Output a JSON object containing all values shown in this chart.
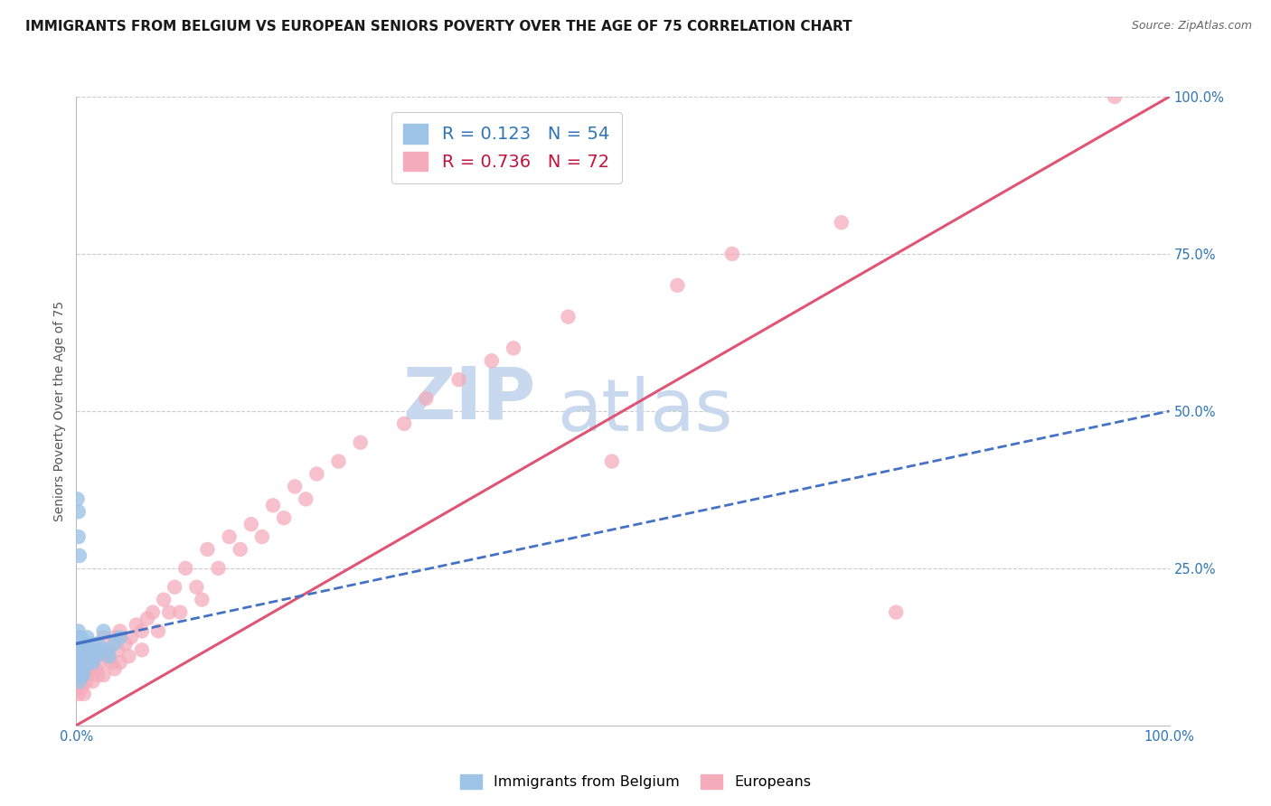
{
  "title": "IMMIGRANTS FROM BELGIUM VS EUROPEAN SENIORS POVERTY OVER THE AGE OF 75 CORRELATION CHART",
  "source": "Source: ZipAtlas.com",
  "ylabel": "Seniors Poverty Over the Age of 75",
  "legend_label1": "Immigrants from Belgium",
  "legend_label2": "Europeans",
  "R1": 0.123,
  "N1": 54,
  "R2": 0.736,
  "N2": 72,
  "color_blue": "#9DC3E6",
  "color_pink": "#F4ACBB",
  "color_blue_line": "#4472C4",
  "color_pink_line": "#E05575",
  "color_blue_dark": "#2E75B6",
  "color_pink_dark": "#C0143C",
  "xlim": [
    0.0,
    1.0
  ],
  "ylim": [
    0.0,
    1.0
  ],
  "ytick_positions": [
    0.25,
    0.5,
    0.75,
    1.0
  ],
  "ytick_labels": [
    "25.0%",
    "50.0%",
    "75.0%",
    "100.0%"
  ],
  "watermark_zip": "ZIP",
  "watermark_atlas": "atlas",
  "blue_scatter_x": [
    0.001,
    0.001,
    0.002,
    0.002,
    0.002,
    0.002,
    0.003,
    0.003,
    0.003,
    0.003,
    0.003,
    0.003,
    0.003,
    0.004,
    0.004,
    0.004,
    0.004,
    0.005,
    0.005,
    0.005,
    0.005,
    0.005,
    0.005,
    0.006,
    0.006,
    0.006,
    0.006,
    0.007,
    0.007,
    0.007,
    0.008,
    0.008,
    0.009,
    0.009,
    0.01,
    0.01,
    0.011,
    0.012,
    0.013,
    0.014,
    0.015,
    0.015,
    0.018,
    0.02,
    0.022,
    0.025,
    0.028,
    0.03,
    0.035,
    0.04,
    0.002,
    0.002,
    0.001,
    0.003
  ],
  "blue_scatter_y": [
    0.12,
    0.08,
    0.15,
    0.1,
    0.13,
    0.08,
    0.14,
    0.11,
    0.09,
    0.12,
    0.1,
    0.07,
    0.13,
    0.11,
    0.09,
    0.14,
    0.1,
    0.12,
    0.08,
    0.11,
    0.13,
    0.1,
    0.09,
    0.11,
    0.13,
    0.1,
    0.08,
    0.12,
    0.1,
    0.09,
    0.13,
    0.11,
    0.12,
    0.1,
    0.14,
    0.11,
    0.1,
    0.12,
    0.11,
    0.13,
    0.1,
    0.12,
    0.11,
    0.13,
    0.12,
    0.15,
    0.12,
    0.11,
    0.13,
    0.14,
    0.3,
    0.34,
    0.36,
    0.27
  ],
  "pink_scatter_x": [
    0.001,
    0.002,
    0.003,
    0.004,
    0.005,
    0.005,
    0.006,
    0.007,
    0.008,
    0.009,
    0.01,
    0.01,
    0.012,
    0.013,
    0.015,
    0.015,
    0.017,
    0.018,
    0.02,
    0.02,
    0.022,
    0.025,
    0.025,
    0.028,
    0.03,
    0.032,
    0.035,
    0.035,
    0.038,
    0.04,
    0.04,
    0.045,
    0.048,
    0.05,
    0.055,
    0.06,
    0.06,
    0.065,
    0.07,
    0.075,
    0.08,
    0.085,
    0.09,
    0.095,
    0.1,
    0.11,
    0.115,
    0.12,
    0.13,
    0.14,
    0.15,
    0.16,
    0.17,
    0.18,
    0.19,
    0.2,
    0.21,
    0.22,
    0.24,
    0.26,
    0.3,
    0.32,
    0.35,
    0.38,
    0.4,
    0.45,
    0.49,
    0.55,
    0.6,
    0.7,
    0.75,
    0.95
  ],
  "pink_scatter_y": [
    0.08,
    0.05,
    0.1,
    0.07,
    0.12,
    0.06,
    0.08,
    0.05,
    0.09,
    0.07,
    0.11,
    0.08,
    0.12,
    0.09,
    0.1,
    0.07,
    0.11,
    0.09,
    0.12,
    0.08,
    0.1,
    0.14,
    0.08,
    0.11,
    0.12,
    0.1,
    0.14,
    0.09,
    0.12,
    0.15,
    0.1,
    0.13,
    0.11,
    0.14,
    0.16,
    0.15,
    0.12,
    0.17,
    0.18,
    0.15,
    0.2,
    0.18,
    0.22,
    0.18,
    0.25,
    0.22,
    0.2,
    0.28,
    0.25,
    0.3,
    0.28,
    0.32,
    0.3,
    0.35,
    0.33,
    0.38,
    0.36,
    0.4,
    0.42,
    0.45,
    0.48,
    0.52,
    0.55,
    0.58,
    0.6,
    0.65,
    0.42,
    0.7,
    0.75,
    0.8,
    0.18,
    1.0
  ],
  "blue_line_x0": 0.0,
  "blue_line_x1": 1.0,
  "blue_line_y0": 0.13,
  "blue_line_y1": 0.5,
  "pink_line_x0": 0.0,
  "pink_line_x1": 1.0,
  "pink_line_y0": 0.0,
  "pink_line_y1": 1.0,
  "background_color": "#ffffff",
  "grid_color": "#cccccc",
  "title_fontsize": 11,
  "axis_label_fontsize": 10,
  "tick_fontsize": 10.5,
  "watermark_fontsize_zip": 58,
  "watermark_fontsize_atlas": 58
}
